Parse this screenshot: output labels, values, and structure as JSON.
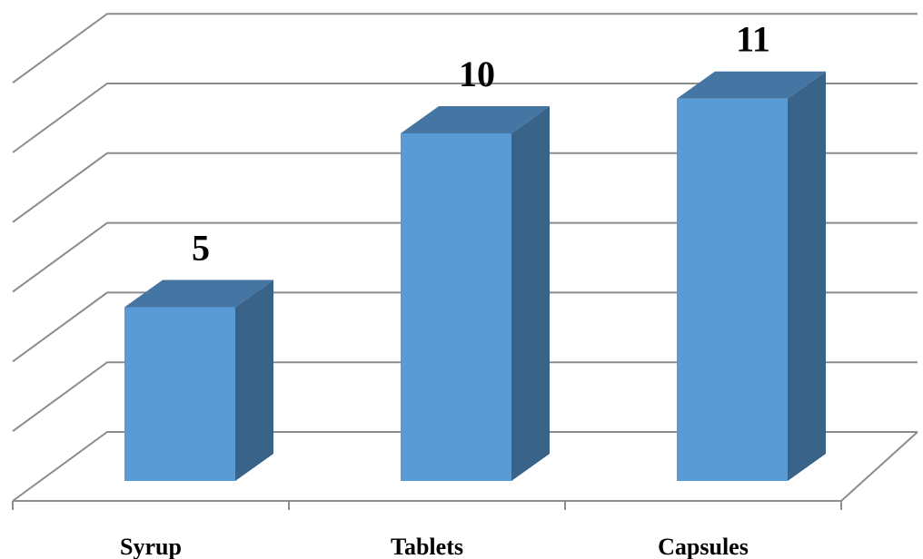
{
  "chart_data": {
    "type": "bar",
    "categories": [
      "Syrup",
      "Tablets",
      "Capsules"
    ],
    "values": [
      5,
      10,
      11
    ],
    "data_labels": [
      "5",
      "10",
      "11"
    ],
    "title": "",
    "xlabel": "",
    "ylabel": "",
    "ylim": [
      0,
      12
    ],
    "y_tick_step": 2,
    "grid": true,
    "legend": "none",
    "style": "3d-column",
    "colors": {
      "front": "#5b9bd5",
      "top": "#4576a3",
      "side": "#3a6389",
      "grid": "#8c8c8c"
    }
  }
}
